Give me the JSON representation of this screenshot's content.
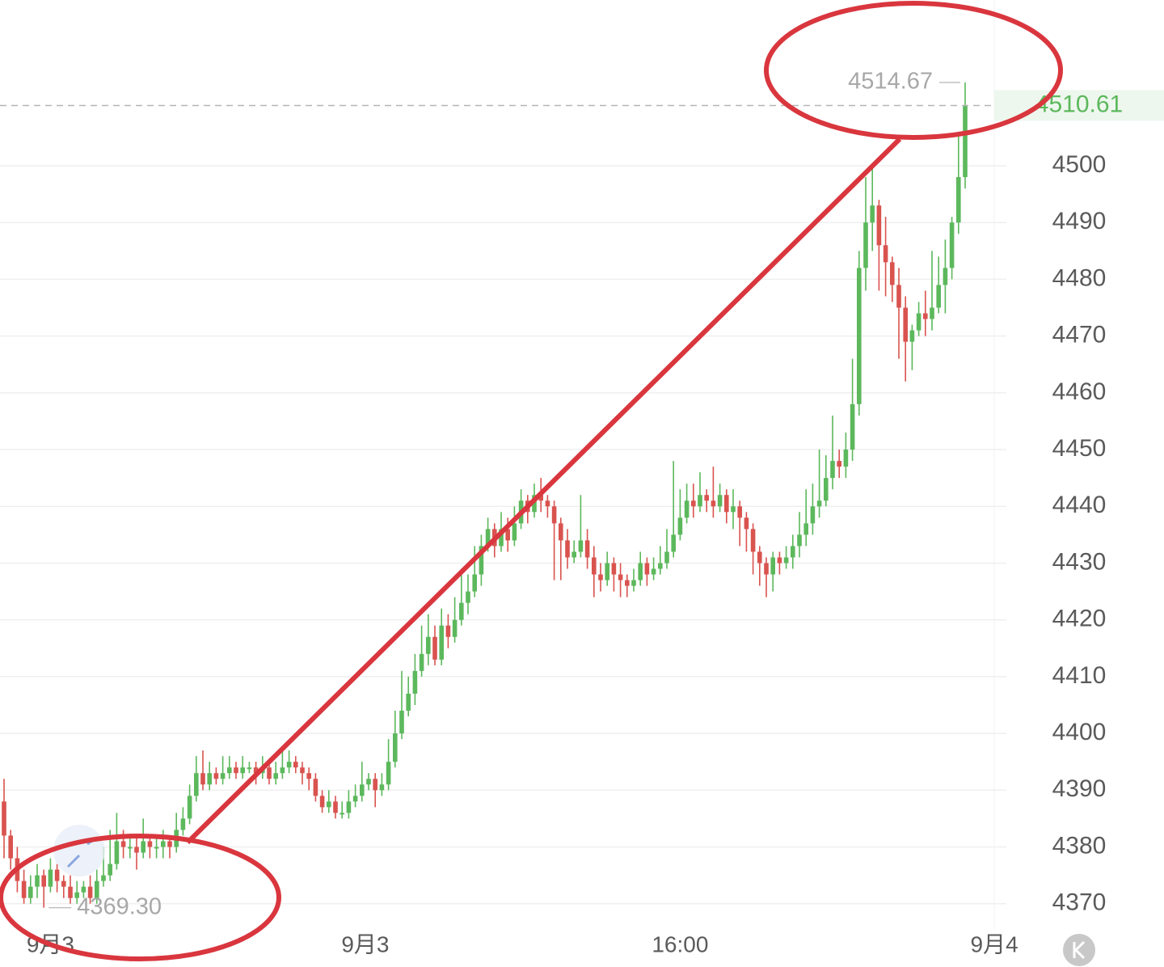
{
  "chart_data": {
    "type": "candlestick",
    "up_color": "#5cb85c",
    "down_color": "#d9534f",
    "grid": true,
    "ylim": [
      4365.4,
      4529.2
    ],
    "yticks": [
      4370,
      4380,
      4390,
      4400,
      4410,
      4420,
      4430,
      4440,
      4450,
      4460,
      4470,
      4480,
      4490,
      4500
    ],
    "xlim": [
      -0.61,
      149.39
    ],
    "xticks": [
      {
        "value": 7,
        "label": "9月3"
      },
      {
        "value": 54.5,
        "label": "9月3"
      },
      {
        "value": 102,
        "label": "16:00"
      },
      {
        "value": 149.4,
        "label": "9月4"
      }
    ],
    "last_price": 4510.61,
    "high_marker": 4514.67,
    "low_marker": {
      "value": 4369.3,
      "label": "4369.30"
    },
    "open": [
      4388,
      4382,
      4378,
      4374,
      4371,
      4373,
      4375,
      4373,
      4376,
      4374,
      4373,
      4371,
      4372,
      4373,
      4371,
      4374,
      4375,
      4377,
      4381,
      4380,
      4380,
      4379,
      4381,
      4380,
      4380,
      4381,
      4380,
      4383,
      4385,
      4389,
      4393,
      4391,
      4393,
      4392,
      4393,
      4394,
      4393,
      4394,
      4394,
      4393,
      4394,
      4392,
      4393,
      4394,
      4395,
      4394,
      4393,
      4392,
      4389,
      4387,
      4388,
      4386,
      4386,
      4388,
      4389,
      4391,
      4392,
      4390,
      4391,
      4395,
      4400,
      4404,
      4407,
      4411,
      4414,
      4417,
      4413,
      4419,
      4417,
      4420,
      4423,
      4425,
      4428,
      4433,
      4436,
      4433,
      4436,
      4434,
      4437,
      4441,
      4439,
      4442,
      4441,
      4440,
      4437,
      4434,
      4431,
      4432,
      4434,
      4431,
      4428,
      4427,
      4430,
      4428,
      4427,
      4426,
      4427,
      4430,
      4428,
      4429,
      4430,
      4432,
      4435,
      4438,
      4441,
      4440,
      4442,
      4441,
      4440,
      4442,
      4439,
      4440,
      4438,
      4436,
      4432,
      4430,
      4428,
      4431,
      4430,
      4431,
      4433,
      4435,
      4437,
      4440,
      4441,
      4445,
      4448,
      4447,
      4450,
      4458,
      4482,
      4490,
      4493,
      4486,
      4483,
      4479,
      4475,
      4469,
      4471,
      4474,
      4473,
      4475,
      4479,
      4482,
      4490,
      4498
    ],
    "high": [
      4392,
      4383,
      4380,
      4376,
      4375,
      4377,
      4376,
      4378,
      4377,
      4375,
      4375,
      4374,
      4374,
      4375,
      4376,
      4380,
      4383,
      4386,
      4383,
      4382,
      4382,
      4385,
      4382,
      4382,
      4383,
      4382,
      4386,
      4387,
      4391,
      4396,
      4397,
      4395,
      4394,
      4396,
      4396,
      4395,
      4396,
      4395,
      4395,
      4396,
      4395,
      4395,
      4397,
      4397,
      4396,
      4395,
      4394,
      4393,
      4390,
      4390,
      4389,
      4388,
      4390,
      4391,
      4395,
      4393,
      4393,
      4393,
      4399,
      4404,
      4411,
      4410,
      4414,
      4419,
      4421,
      4419,
      4422,
      4421,
      4424,
      4429,
      4428,
      4433,
      4435,
      4438,
      4437,
      4439,
      4438,
      4440,
      4443,
      4442,
      4444,
      4445,
      4442,
      4441,
      4438,
      4436,
      4434,
      4442,
      4436,
      4433,
      4430,
      4432,
      4431,
      4430,
      4428,
      4429,
      4432,
      4431,
      4431,
      4433,
      4436,
      4448,
      4443,
      4444,
      4444,
      4446,
      4443,
      4447,
      4444,
      4443,
      4443,
      4441,
      4439,
      4437,
      4433,
      4431,
      4432,
      4432,
      4433,
      4435,
      4439,
      4443,
      4444,
      4450,
      4449,
      4456,
      4450,
      4453,
      4466,
      4485,
      4498,
      4500,
      4494,
      4491,
      4484,
      4482,
      4477,
      4472,
      4476,
      4478,
      4485,
      4484,
      4487,
      4491,
      4506,
      4514.67
    ],
    "low": [
      4378,
      4376,
      4372,
      4370,
      4370,
      4371,
      4369.3,
      4372,
      4372,
      4371,
      4370,
      4370,
      4371,
      4370,
      4370,
      4373,
      4374,
      4376,
      4378,
      4378,
      4376,
      4378,
      4378,
      4378,
      4378,
      4378,
      4379,
      4382,
      4384,
      4388,
      4390,
      4390,
      4391,
      4391,
      4392,
      4392,
      4392,
      4393,
      4391,
      4392,
      4391,
      4391,
      4392,
      4393,
      4393,
      4391,
      4390,
      4388,
      4386,
      4386,
      4385,
      4385,
      4385,
      4387,
      4388,
      4390,
      4387,
      4389,
      4390,
      4394,
      4399,
      4403,
      4405,
      4410,
      4412,
      4412,
      4412,
      4415,
      4416,
      4419,
      4421,
      4424,
      4426,
      4432,
      4431,
      4432,
      4432,
      4433,
      4436,
      4437,
      4438,
      4439,
      4438,
      4427,
      4427,
      4429,
      4430,
      4431,
      4429,
      4424,
      4425,
      4426,
      4425,
      4424,
      4424,
      4425,
      4426,
      4426,
      4427,
      4428,
      4429,
      4431,
      4434,
      4437,
      4438,
      4439,
      4439,
      4438,
      4439,
      4437,
      4436,
      4433,
      4432,
      4428,
      4426,
      4424,
      4425,
      4428,
      4429,
      4429,
      4431,
      4433,
      4435,
      4438,
      4440,
      4443,
      4445,
      4445,
      4448,
      4456,
      4478,
      4485,
      4478,
      4477,
      4476,
      4466,
      4462,
      4464,
      4470,
      4470,
      4471,
      4474,
      4474,
      4480,
      4488,
      4496
    ],
    "close": [
      4382,
      4378,
      4374,
      4371,
      4373,
      4375,
      4373,
      4376,
      4374,
      4373,
      4371,
      4372,
      4373,
      4371,
      4374,
      4375,
      4377,
      4381,
      4380,
      4380,
      4379,
      4381,
      4380,
      4380,
      4381,
      4380,
      4383,
      4385,
      4389,
      4393,
      4391,
      4393,
      4392,
      4393,
      4394,
      4393,
      4394,
      4394,
      4393,
      4394,
      4392,
      4393,
      4394,
      4395,
      4394,
      4393,
      4392,
      4389,
      4387,
      4388,
      4386,
      4386,
      4388,
      4389,
      4391,
      4392,
      4390,
      4391,
      4395,
      4400,
      4404,
      4407,
      4411,
      4414,
      4417,
      4413,
      4419,
      4417,
      4420,
      4423,
      4425,
      4428,
      4433,
      4436,
      4433,
      4436,
      4434,
      4437,
      4441,
      4439,
      4442,
      4441,
      4440,
      4437,
      4434,
      4431,
      4432,
      4434,
      4431,
      4428,
      4427,
      4430,
      4428,
      4427,
      4426,
      4427,
      4430,
      4428,
      4429,
      4430,
      4432,
      4435,
      4438,
      4441,
      4440,
      4442,
      4441,
      4440,
      4442,
      4439,
      4440,
      4438,
      4436,
      4432,
      4430,
      4428,
      4431,
      4430,
      4431,
      4433,
      4435,
      4437,
      4440,
      4441,
      4445,
      4448,
      4447,
      4450,
      4458,
      4482,
      4490,
      4493,
      4486,
      4483,
      4479,
      4475,
      4469,
      4471,
      4474,
      4473,
      4475,
      4479,
      4482,
      4490,
      4498,
      4510.61
    ]
  }
}
